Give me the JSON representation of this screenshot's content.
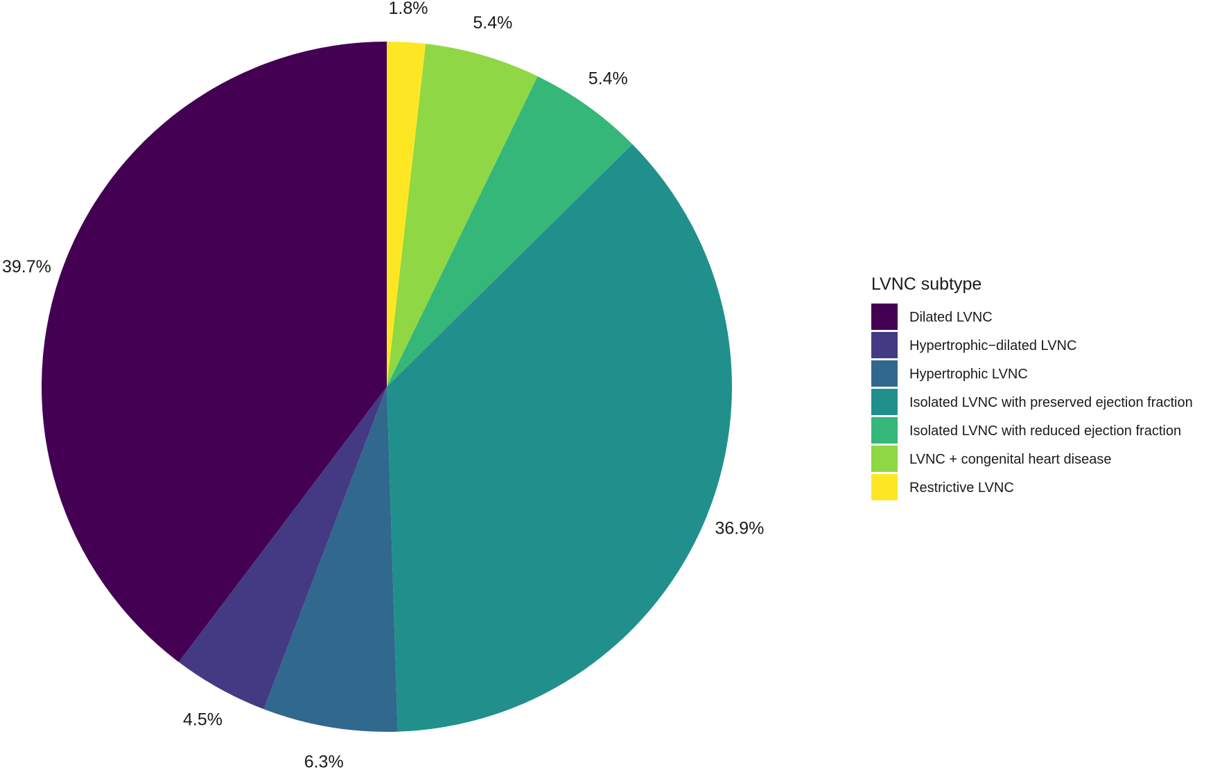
{
  "chart_data": {
    "type": "pie",
    "legend": {
      "title": "LVNC subtype",
      "placement": "right"
    },
    "direction": "clockwise-from-top",
    "slices": [
      {
        "name": "Restrictive LVNC",
        "value": 1.8,
        "label": "1.8%",
        "color": "#FDE725"
      },
      {
        "name": "LVNC + congenital heart disease",
        "value": 5.4,
        "label": "5.4%",
        "color": "#8FD744"
      },
      {
        "name": "Isolated LVNC with reduced ejection fraction",
        "value": 5.4,
        "label": "5.4%",
        "color": "#35B779"
      },
      {
        "name": "Isolated LVNC with preserved ejection fraction",
        "value": 36.9,
        "label": "36.9%",
        "color": "#21908C"
      },
      {
        "name": "Hypertrophic LVNC",
        "value": 6.3,
        "label": "6.3%",
        "color": "#31688E"
      },
      {
        "name": "Hypertrophic−dilated LVNC",
        "value": 4.5,
        "label": "4.5%",
        "color": "#443A83"
      },
      {
        "name": "Dilated LVNC",
        "value": 39.7,
        "label": "39.7%",
        "color": "#440154"
      }
    ],
    "legend_order": [
      "Dilated LVNC",
      "Hypertrophic−dilated LVNC",
      "Hypertrophic LVNC",
      "Isolated LVNC with preserved ejection fraction",
      "Isolated LVNC with reduced ejection fraction",
      "LVNC + congenital heart disease",
      "Restrictive LVNC"
    ]
  }
}
